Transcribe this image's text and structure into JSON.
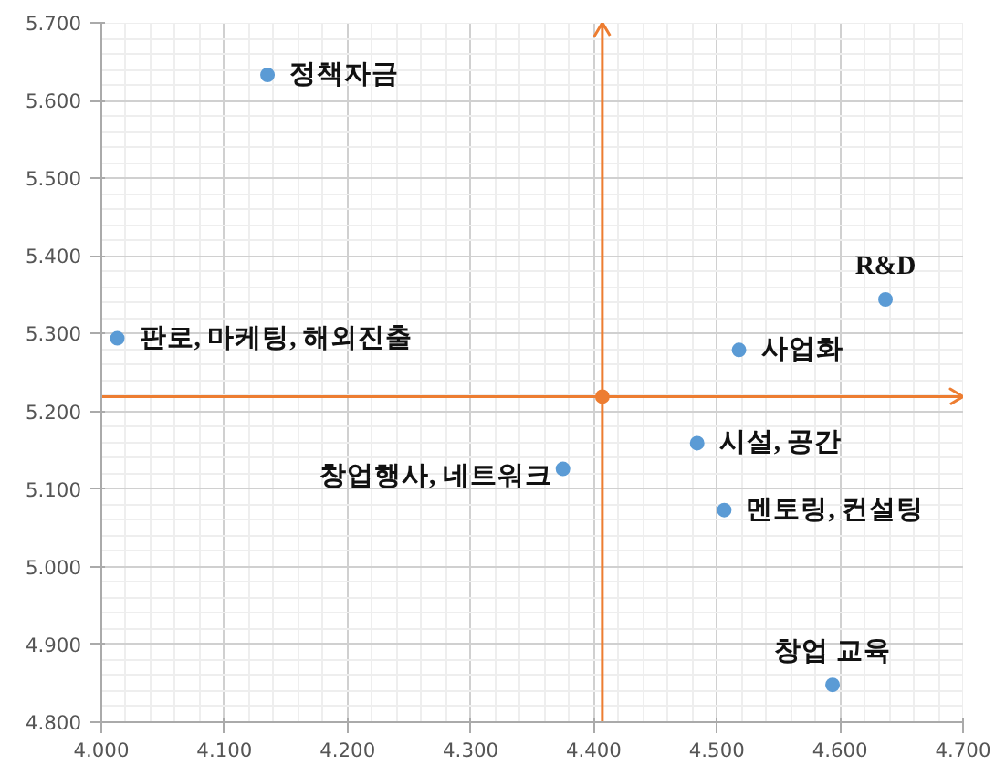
{
  "chart_data": {
    "type": "scatter",
    "xlim": [
      4.0,
      4.7
    ],
    "ylim": [
      4.8,
      5.7
    ],
    "xticks": [
      {
        "value": 4.0,
        "label": "4.000"
      },
      {
        "value": 4.1,
        "label": "4.100"
      },
      {
        "value": 4.2,
        "label": "4.200"
      },
      {
        "value": 4.3,
        "label": "4.300"
      },
      {
        "value": 4.4,
        "label": "4.400"
      },
      {
        "value": 4.5,
        "label": "4.500"
      },
      {
        "value": 4.6,
        "label": "4.600"
      },
      {
        "value": 4.7,
        "label": "4.700"
      }
    ],
    "yticks": [
      {
        "value": 4.8,
        "label": "4.800"
      },
      {
        "value": 4.9,
        "label": "4.900"
      },
      {
        "value": 5.0,
        "label": "5.000"
      },
      {
        "value": 5.1,
        "label": "5.100"
      },
      {
        "value": 5.2,
        "label": "5.200"
      },
      {
        "value": 5.3,
        "label": "5.300"
      },
      {
        "value": 5.4,
        "label": "5.400"
      },
      {
        "value": 5.5,
        "label": "5.500"
      },
      {
        "value": 5.6,
        "label": "5.600"
      },
      {
        "value": 5.7,
        "label": "5.700"
      }
    ],
    "grid": true,
    "marker": "circle",
    "series": [
      {
        "color": "#5b9bd5",
        "x": [
          4.135,
          4.013,
          4.637,
          4.518,
          4.484,
          4.375,
          4.506,
          4.594
        ],
        "values": [
          5.633,
          5.294,
          5.344,
          5.279,
          5.159,
          5.126,
          5.073,
          4.848
        ]
      },
      {
        "color": "#ed7d31",
        "x": [
          4.407
        ],
        "values": [
          5.219
        ]
      }
    ],
    "ref_lines": [
      {
        "axis": "x",
        "value": 4.407,
        "color": "#ed7d31"
      },
      {
        "axis": "y",
        "value": 5.219,
        "color": "#ed7d31"
      }
    ],
    "annotations": [
      {
        "text": "정책자금",
        "x": 4.135,
        "y": 5.633
      },
      {
        "text": "판로, 마케팅, 해외진출",
        "x": 4.013,
        "y": 5.294
      },
      {
        "text": "R&D",
        "x": 4.637,
        "y": 5.344
      },
      {
        "text": "사업화",
        "x": 4.518,
        "y": 5.279
      },
      {
        "text": "시설, 공간",
        "x": 4.484,
        "y": 5.159
      },
      {
        "text": "창업행사, 네트워크",
        "x": 4.375,
        "y": 5.126
      },
      {
        "text": "멘토링, 컨설팅",
        "x": 4.506,
        "y": 5.073
      },
      {
        "text": "창업 교육",
        "x": 4.594,
        "y": 4.848
      }
    ]
  }
}
